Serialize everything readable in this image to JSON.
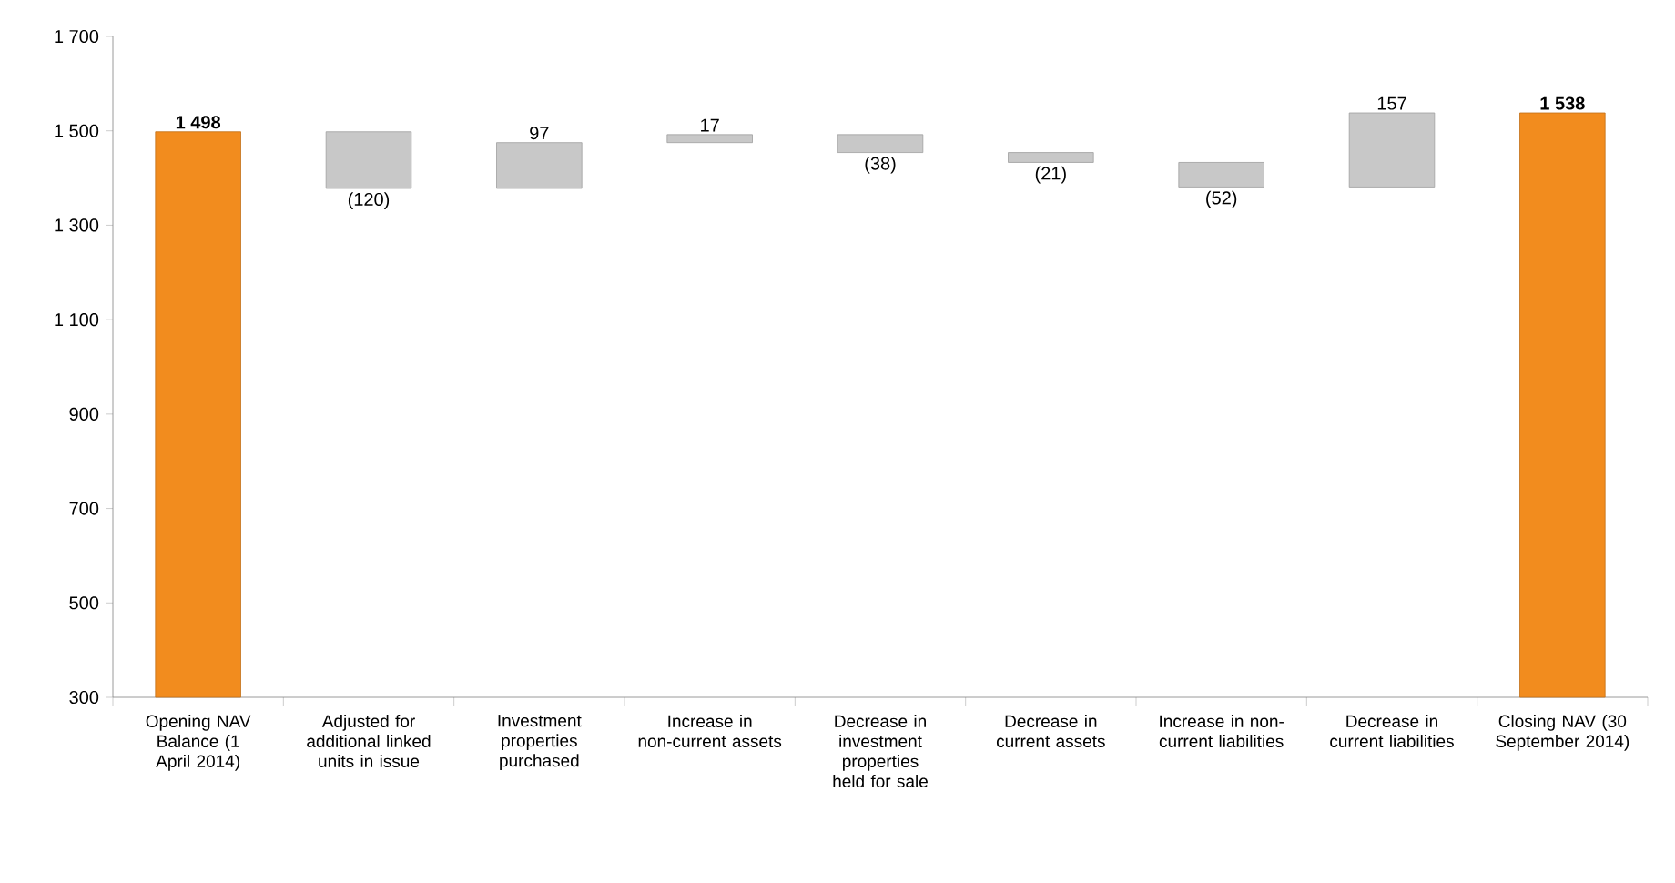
{
  "chart_data": {
    "type": "bar",
    "categories": [
      "Opening NAV Balance (1 April 2014)",
      "Adjusted for additional linked units in issue",
      "Investment properties purchased",
      "Increase in non-current assets",
      "Decrease in investment properties held for sale",
      "Decrease in current assets",
      "Increase in non-current liabilities",
      "Decrease in current liabilities",
      "Closing NAV (30 September 2014)"
    ],
    "values": [
      1498,
      -120,
      97,
      17,
      -38,
      -21,
      -52,
      157,
      1538
    ],
    "base": [
      null,
      1498,
      1378,
      1475,
      1492,
      1454,
      1433,
      1381,
      null
    ],
    "colors": [
      "#f28c1e",
      "#c8c8c8",
      "#c8c8c8",
      "#c8c8c8",
      "#c8c8c8",
      "#c8c8c8",
      "#c8c8c8",
      "#c8c8c8",
      "#f28c1e"
    ],
    "value_labels": [
      "1 498",
      "(120)",
      "97",
      "17",
      "(38)",
      "(21)",
      "(52)",
      "157",
      "1 538"
    ],
    "ylim": [
      300,
      1700
    ],
    "yticks": [
      {
        "value": 300,
        "label": "300"
      },
      {
        "value": 500,
        "label": "500"
      },
      {
        "value": 700,
        "label": "700"
      },
      {
        "value": 900,
        "label": "900"
      },
      {
        "value": 1100,
        "label": "1 100"
      },
      {
        "value": 1300,
        "label": "1 300"
      },
      {
        "value": 1500,
        "label": "1 500"
      },
      {
        "value": 1700,
        "label": "1 700"
      }
    ],
    "grid": false
  }
}
